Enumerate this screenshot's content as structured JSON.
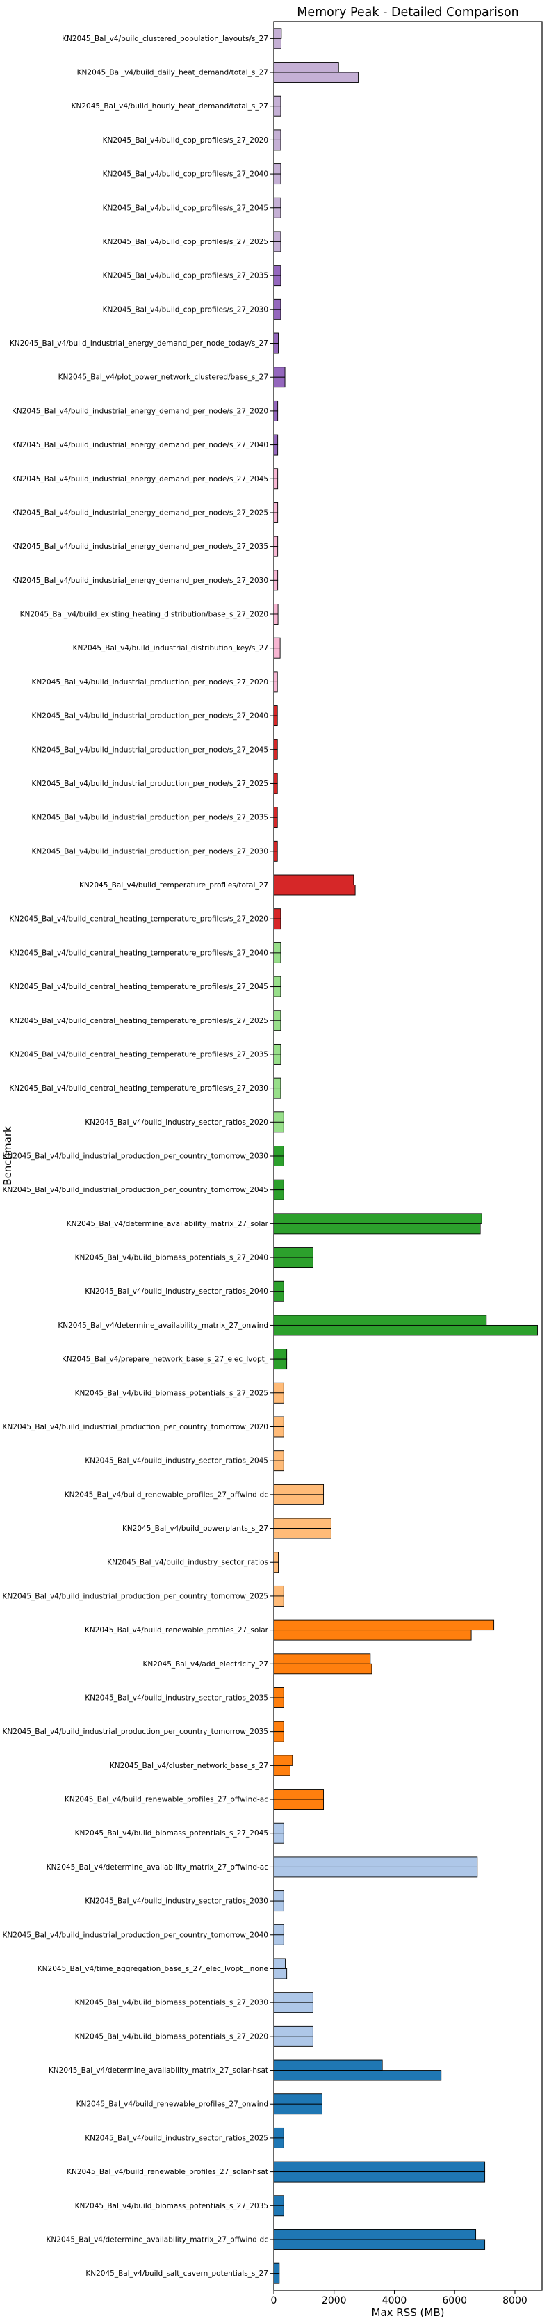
{
  "chart_data": {
    "type": "bar",
    "orientation": "horizontal",
    "title": "Memory Peak - Detailed Comparison",
    "xlabel": "Max RSS (MB)",
    "ylabel": "Benchmark",
    "xlim": [
      0,
      8900
    ],
    "xticks": [
      0,
      2000,
      4000,
      6000,
      8000
    ],
    "xtick_labels": [
      "0",
      "2000",
      "4000",
      "6000",
      "8000"
    ],
    "grid": false,
    "legend": "none",
    "categories": [
      {
        "label": "KN2045_Bal_v4/build_clustered_population_layouts/s_27",
        "values": [
          250,
          240
        ],
        "color": "#c5b0d5"
      },
      {
        "label": "KN2045_Bal_v4/build_daily_heat_demand/total_s_27",
        "values": [
          2150,
          2800
        ],
        "color": "#c5b0d5"
      },
      {
        "label": "KN2045_Bal_v4/build_hourly_heat_demand/total_s_27",
        "values": [
          230,
          230
        ],
        "color": "#c5b0d5"
      },
      {
        "label": "KN2045_Bal_v4/build_cop_profiles/s_27_2020",
        "values": [
          230,
          230
        ],
        "color": "#c5b0d5"
      },
      {
        "label": "KN2045_Bal_v4/build_cop_profiles/s_27_2040",
        "values": [
          230,
          230
        ],
        "color": "#c5b0d5"
      },
      {
        "label": "KN2045_Bal_v4/build_cop_profiles/s_27_2045",
        "values": [
          230,
          230
        ],
        "color": "#c5b0d5"
      },
      {
        "label": "KN2045_Bal_v4/build_cop_profiles/s_27_2025",
        "values": [
          230,
          230
        ],
        "color": "#c5b0d5"
      },
      {
        "label": "KN2045_Bal_v4/build_cop_profiles/s_27_2035",
        "values": [
          230,
          230
        ],
        "color": "#9467bd"
      },
      {
        "label": "KN2045_Bal_v4/build_cop_profiles/s_27_2030",
        "values": [
          230,
          230
        ],
        "color": "#9467bd"
      },
      {
        "label": "KN2045_Bal_v4/build_industrial_energy_demand_per_node_today/s_27",
        "values": [
          150,
          150
        ],
        "color": "#9467bd"
      },
      {
        "label": "KN2045_Bal_v4/plot_power_network_clustered/base_s_27",
        "values": [
          370,
          370
        ],
        "color": "#9467bd"
      },
      {
        "label": "KN2045_Bal_v4/build_industrial_energy_demand_per_node/s_27_2020",
        "values": [
          130,
          130
        ],
        "color": "#9467bd"
      },
      {
        "label": "KN2045_Bal_v4/build_industrial_energy_demand_per_node/s_27_2040",
        "values": [
          130,
          130
        ],
        "color": "#9467bd"
      },
      {
        "label": "KN2045_Bal_v4/build_industrial_energy_demand_per_node/s_27_2045",
        "values": [
          130,
          130
        ],
        "color": "#f7b6d2"
      },
      {
        "label": "KN2045_Bal_v4/build_industrial_energy_demand_per_node/s_27_2025",
        "values": [
          130,
          130
        ],
        "color": "#f7b6d2"
      },
      {
        "label": "KN2045_Bal_v4/build_industrial_energy_demand_per_node/s_27_2035",
        "values": [
          130,
          130
        ],
        "color": "#f7b6d2"
      },
      {
        "label": "KN2045_Bal_v4/build_industrial_energy_demand_per_node/s_27_2030",
        "values": [
          130,
          130
        ],
        "color": "#f7b6d2"
      },
      {
        "label": "KN2045_Bal_v4/build_existing_heating_distribution/base_s_27_2020",
        "values": [
          140,
          140
        ],
        "color": "#f7b6d2"
      },
      {
        "label": "KN2045_Bal_v4/build_industrial_distribution_key/s_27",
        "values": [
          210,
          210
        ],
        "color": "#f7b6d2"
      },
      {
        "label": "KN2045_Bal_v4/build_industrial_production_per_node/s_27_2020",
        "values": [
          120,
          120
        ],
        "color": "#f7b6d2"
      },
      {
        "label": "KN2045_Bal_v4/build_industrial_production_per_node/s_27_2040",
        "values": [
          120,
          120
        ],
        "color": "#d62728"
      },
      {
        "label": "KN2045_Bal_v4/build_industrial_production_per_node/s_27_2045",
        "values": [
          120,
          120
        ],
        "color": "#d62728"
      },
      {
        "label": "KN2045_Bal_v4/build_industrial_production_per_node/s_27_2025",
        "values": [
          120,
          120
        ],
        "color": "#d62728"
      },
      {
        "label": "KN2045_Bal_v4/build_industrial_production_per_node/s_27_2035",
        "values": [
          120,
          120
        ],
        "color": "#d62728"
      },
      {
        "label": "KN2045_Bal_v4/build_industrial_production_per_node/s_27_2030",
        "values": [
          120,
          120
        ],
        "color": "#d62728"
      },
      {
        "label": "KN2045_Bal_v4/build_temperature_profiles/total_27",
        "values": [
          2650,
          2700
        ],
        "color": "#d62728"
      },
      {
        "label": "KN2045_Bal_v4/build_central_heating_temperature_profiles/s_27_2020",
        "values": [
          230,
          230
        ],
        "color": "#d62728"
      },
      {
        "label": "KN2045_Bal_v4/build_central_heating_temperature_profiles/s_27_2040",
        "values": [
          230,
          230
        ],
        "color": "#98df8a"
      },
      {
        "label": "KN2045_Bal_v4/build_central_heating_temperature_profiles/s_27_2045",
        "values": [
          230,
          230
        ],
        "color": "#98df8a"
      },
      {
        "label": "KN2045_Bal_v4/build_central_heating_temperature_profiles/s_27_2025",
        "values": [
          230,
          230
        ],
        "color": "#98df8a"
      },
      {
        "label": "KN2045_Bal_v4/build_central_heating_temperature_profiles/s_27_2035",
        "values": [
          230,
          230
        ],
        "color": "#98df8a"
      },
      {
        "label": "KN2045_Bal_v4/build_central_heating_temperature_profiles/s_27_2030",
        "values": [
          230,
          230
        ],
        "color": "#98df8a"
      },
      {
        "label": "KN2045_Bal_v4/build_industry_sector_ratios_2020",
        "values": [
          330,
          330
        ],
        "color": "#98df8a"
      },
      {
        "label": "KN2045_Bal_v4/build_industrial_production_per_country_tomorrow_2030",
        "values": [
          330,
          330
        ],
        "color": "#2ca02c"
      },
      {
        "label": "KN2045_Bal_v4/build_industrial_production_per_country_tomorrow_2045",
        "values": [
          330,
          330
        ],
        "color": "#2ca02c"
      },
      {
        "label": "KN2045_Bal_v4/determine_availability_matrix_27_solar",
        "values": [
          6900,
          6850
        ],
        "color": "#2ca02c"
      },
      {
        "label": "KN2045_Bal_v4/build_biomass_potentials_s_27_2040",
        "values": [
          1300,
          1300
        ],
        "color": "#2ca02c"
      },
      {
        "label": "KN2045_Bal_v4/build_industry_sector_ratios_2040",
        "values": [
          330,
          330
        ],
        "color": "#2ca02c"
      },
      {
        "label": "KN2045_Bal_v4/determine_availability_matrix_27_onwind",
        "values": [
          7050,
          8750
        ],
        "color": "#2ca02c"
      },
      {
        "label": "KN2045_Bal_v4/prepare_network_base_s_27_elec_lvopt_",
        "values": [
          430,
          430
        ],
        "color": "#2ca02c"
      },
      {
        "label": "KN2045_Bal_v4/build_biomass_potentials_s_27_2025",
        "values": [
          330,
          330
        ],
        "color": "#ffbb78"
      },
      {
        "label": "KN2045_Bal_v4/build_industrial_production_per_country_tomorrow_2020",
        "values": [
          330,
          330
        ],
        "color": "#ffbb78"
      },
      {
        "label": "KN2045_Bal_v4/build_industry_sector_ratios_2045",
        "values": [
          330,
          330
        ],
        "color": "#ffbb78"
      },
      {
        "label": "KN2045_Bal_v4/build_renewable_profiles_27_offwind-dc",
        "values": [
          1650,
          1650
        ],
        "color": "#ffbb78"
      },
      {
        "label": "KN2045_Bal_v4/build_powerplants_s_27",
        "values": [
          1900,
          1900
        ],
        "color": "#ffbb78"
      },
      {
        "label": "KN2045_Bal_v4/build_industry_sector_ratios",
        "values": [
          150,
          150
        ],
        "color": "#ffbb78"
      },
      {
        "label": "KN2045_Bal_v4/build_industrial_production_per_country_tomorrow_2025",
        "values": [
          330,
          330
        ],
        "color": "#ffbb78"
      },
      {
        "label": "KN2045_Bal_v4/build_renewable_profiles_27_solar",
        "values": [
          7300,
          6550
        ],
        "color": "#ff7f0e"
      },
      {
        "label": "KN2045_Bal_v4/add_electricity_27",
        "values": [
          3200,
          3250
        ],
        "color": "#ff7f0e"
      },
      {
        "label": "KN2045_Bal_v4/build_industry_sector_ratios_2035",
        "values": [
          330,
          330
        ],
        "color": "#ff7f0e"
      },
      {
        "label": "KN2045_Bal_v4/build_industrial_production_per_country_tomorrow_2035",
        "values": [
          330,
          330
        ],
        "color": "#ff7f0e"
      },
      {
        "label": "KN2045_Bal_v4/cluster_network_base_s_27",
        "values": [
          620,
          540
        ],
        "color": "#ff7f0e"
      },
      {
        "label": "KN2045_Bal_v4/build_renewable_profiles_27_offwind-ac",
        "values": [
          1650,
          1650
        ],
        "color": "#ff7f0e"
      },
      {
        "label": "KN2045_Bal_v4/build_biomass_potentials_s_27_2045",
        "values": [
          330,
          330
        ],
        "color": "#aec7e8"
      },
      {
        "label": "KN2045_Bal_v4/determine_availability_matrix_27_offwind-ac",
        "values": [
          6750,
          6750
        ],
        "color": "#aec7e8"
      },
      {
        "label": "KN2045_Bal_v4/build_industry_sector_ratios_2030",
        "values": [
          330,
          330
        ],
        "color": "#aec7e8"
      },
      {
        "label": "KN2045_Bal_v4/build_industrial_production_per_country_tomorrow_2040",
        "values": [
          330,
          330
        ],
        "color": "#aec7e8"
      },
      {
        "label": "KN2045_Bal_v4/time_aggregation_base_s_27_elec_lvopt__none",
        "values": [
          380,
          430
        ],
        "color": "#aec7e8"
      },
      {
        "label": "KN2045_Bal_v4/build_biomass_potentials_s_27_2030",
        "values": [
          1300,
          1300
        ],
        "color": "#aec7e8"
      },
      {
        "label": "KN2045_Bal_v4/build_biomass_potentials_s_27_2020",
        "values": [
          1300,
          1300
        ],
        "color": "#aec7e8"
      },
      {
        "label": "KN2045_Bal_v4/determine_availability_matrix_27_solar-hsat",
        "values": [
          3600,
          5550
        ],
        "color": "#1f77b4"
      },
      {
        "label": "KN2045_Bal_v4/build_renewable_profiles_27_onwind",
        "values": [
          1600,
          1600
        ],
        "color": "#1f77b4"
      },
      {
        "label": "KN2045_Bal_v4/build_industry_sector_ratios_2025",
        "values": [
          330,
          330
        ],
        "color": "#1f77b4"
      },
      {
        "label": "KN2045_Bal_v4/build_renewable_profiles_27_solar-hsat",
        "values": [
          7000,
          7000
        ],
        "color": "#1f77b4"
      },
      {
        "label": "KN2045_Bal_v4/build_biomass_potentials_s_27_2035",
        "values": [
          330,
          330
        ],
        "color": "#1f77b4"
      },
      {
        "label": "KN2045_Bal_v4/determine_availability_matrix_27_offwind-dc",
        "values": [
          6700,
          7000
        ],
        "color": "#1f77b4"
      },
      {
        "label": "KN2045_Bal_v4/build_salt_cavern_potentials_s_27",
        "values": [
          180,
          180
        ],
        "color": "#1f77b4"
      }
    ]
  }
}
